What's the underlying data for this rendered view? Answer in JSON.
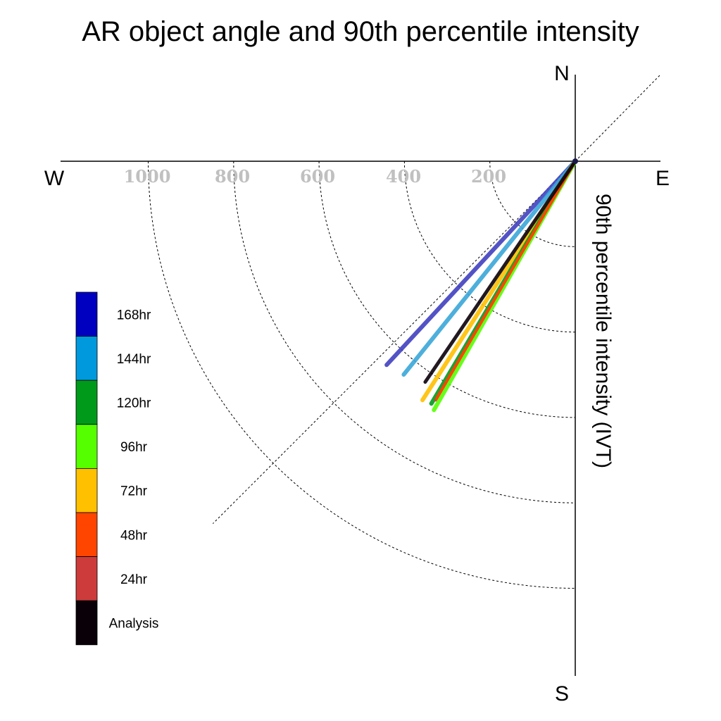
{
  "chart_data": {
    "type": "line",
    "title": "AR object angle and 90th percentile intensity",
    "ylabel": "90th percentile intensity (IVT)",
    "compass": {
      "north": "N",
      "south": "S",
      "east": "E",
      "west": "W"
    },
    "radial_ticks": [
      "200",
      "400",
      "600",
      "800",
      "1000"
    ],
    "radial_tick_values": [
      200,
      400,
      600,
      800,
      1000
    ],
    "radial_max": 1200,
    "grid": true,
    "legend_placement": "lower-left",
    "legend": [
      {
        "label": "168hr",
        "color": "#0000c0"
      },
      {
        "label": "144hr",
        "color": "#0099dd"
      },
      {
        "label": "120hr",
        "color": "#009a1a"
      },
      {
        "label": "96hr",
        "color": "#55ff00"
      },
      {
        "label": "72hr",
        "color": "#ffc000"
      },
      {
        "label": "48hr",
        "color": "#ff4500"
      },
      {
        "label": "24hr",
        "color": "#cd3b3b"
      },
      {
        "label": "Analysis",
        "color": "#0a0008"
      }
    ],
    "series": [
      {
        "name": "168hr",
        "color": "#4040c0",
        "angle_deg": 222.8,
        "intensity": 650,
        "width": 6
      },
      {
        "name": "144hr",
        "color": "#3aa6d8",
        "angle_deg": 218.8,
        "intensity": 641,
        "width": 6
      },
      {
        "name": "72hr",
        "color": "#ffc000",
        "angle_deg": 212.6,
        "intensity": 664,
        "width": 6
      },
      {
        "name": "120hr",
        "color": "#009a1a",
        "angle_deg": 210.7,
        "intensity": 660,
        "width": 6
      },
      {
        "name": "96hr",
        "color": "#55ff00",
        "angle_deg": 209.6,
        "intensity": 670,
        "width": 6
      },
      {
        "name": "24hr",
        "color": "#cd3b3b",
        "angle_deg": 210.3,
        "intensity": 648,
        "width": 4
      },
      {
        "name": "48hr",
        "color": "#ff4500",
        "angle_deg": 210.3,
        "intensity": 644,
        "width": 4
      },
      {
        "name": "Analysis",
        "color": "#0a0008",
        "angle_deg": 214.2,
        "intensity": 625,
        "width": 5
      }
    ]
  }
}
